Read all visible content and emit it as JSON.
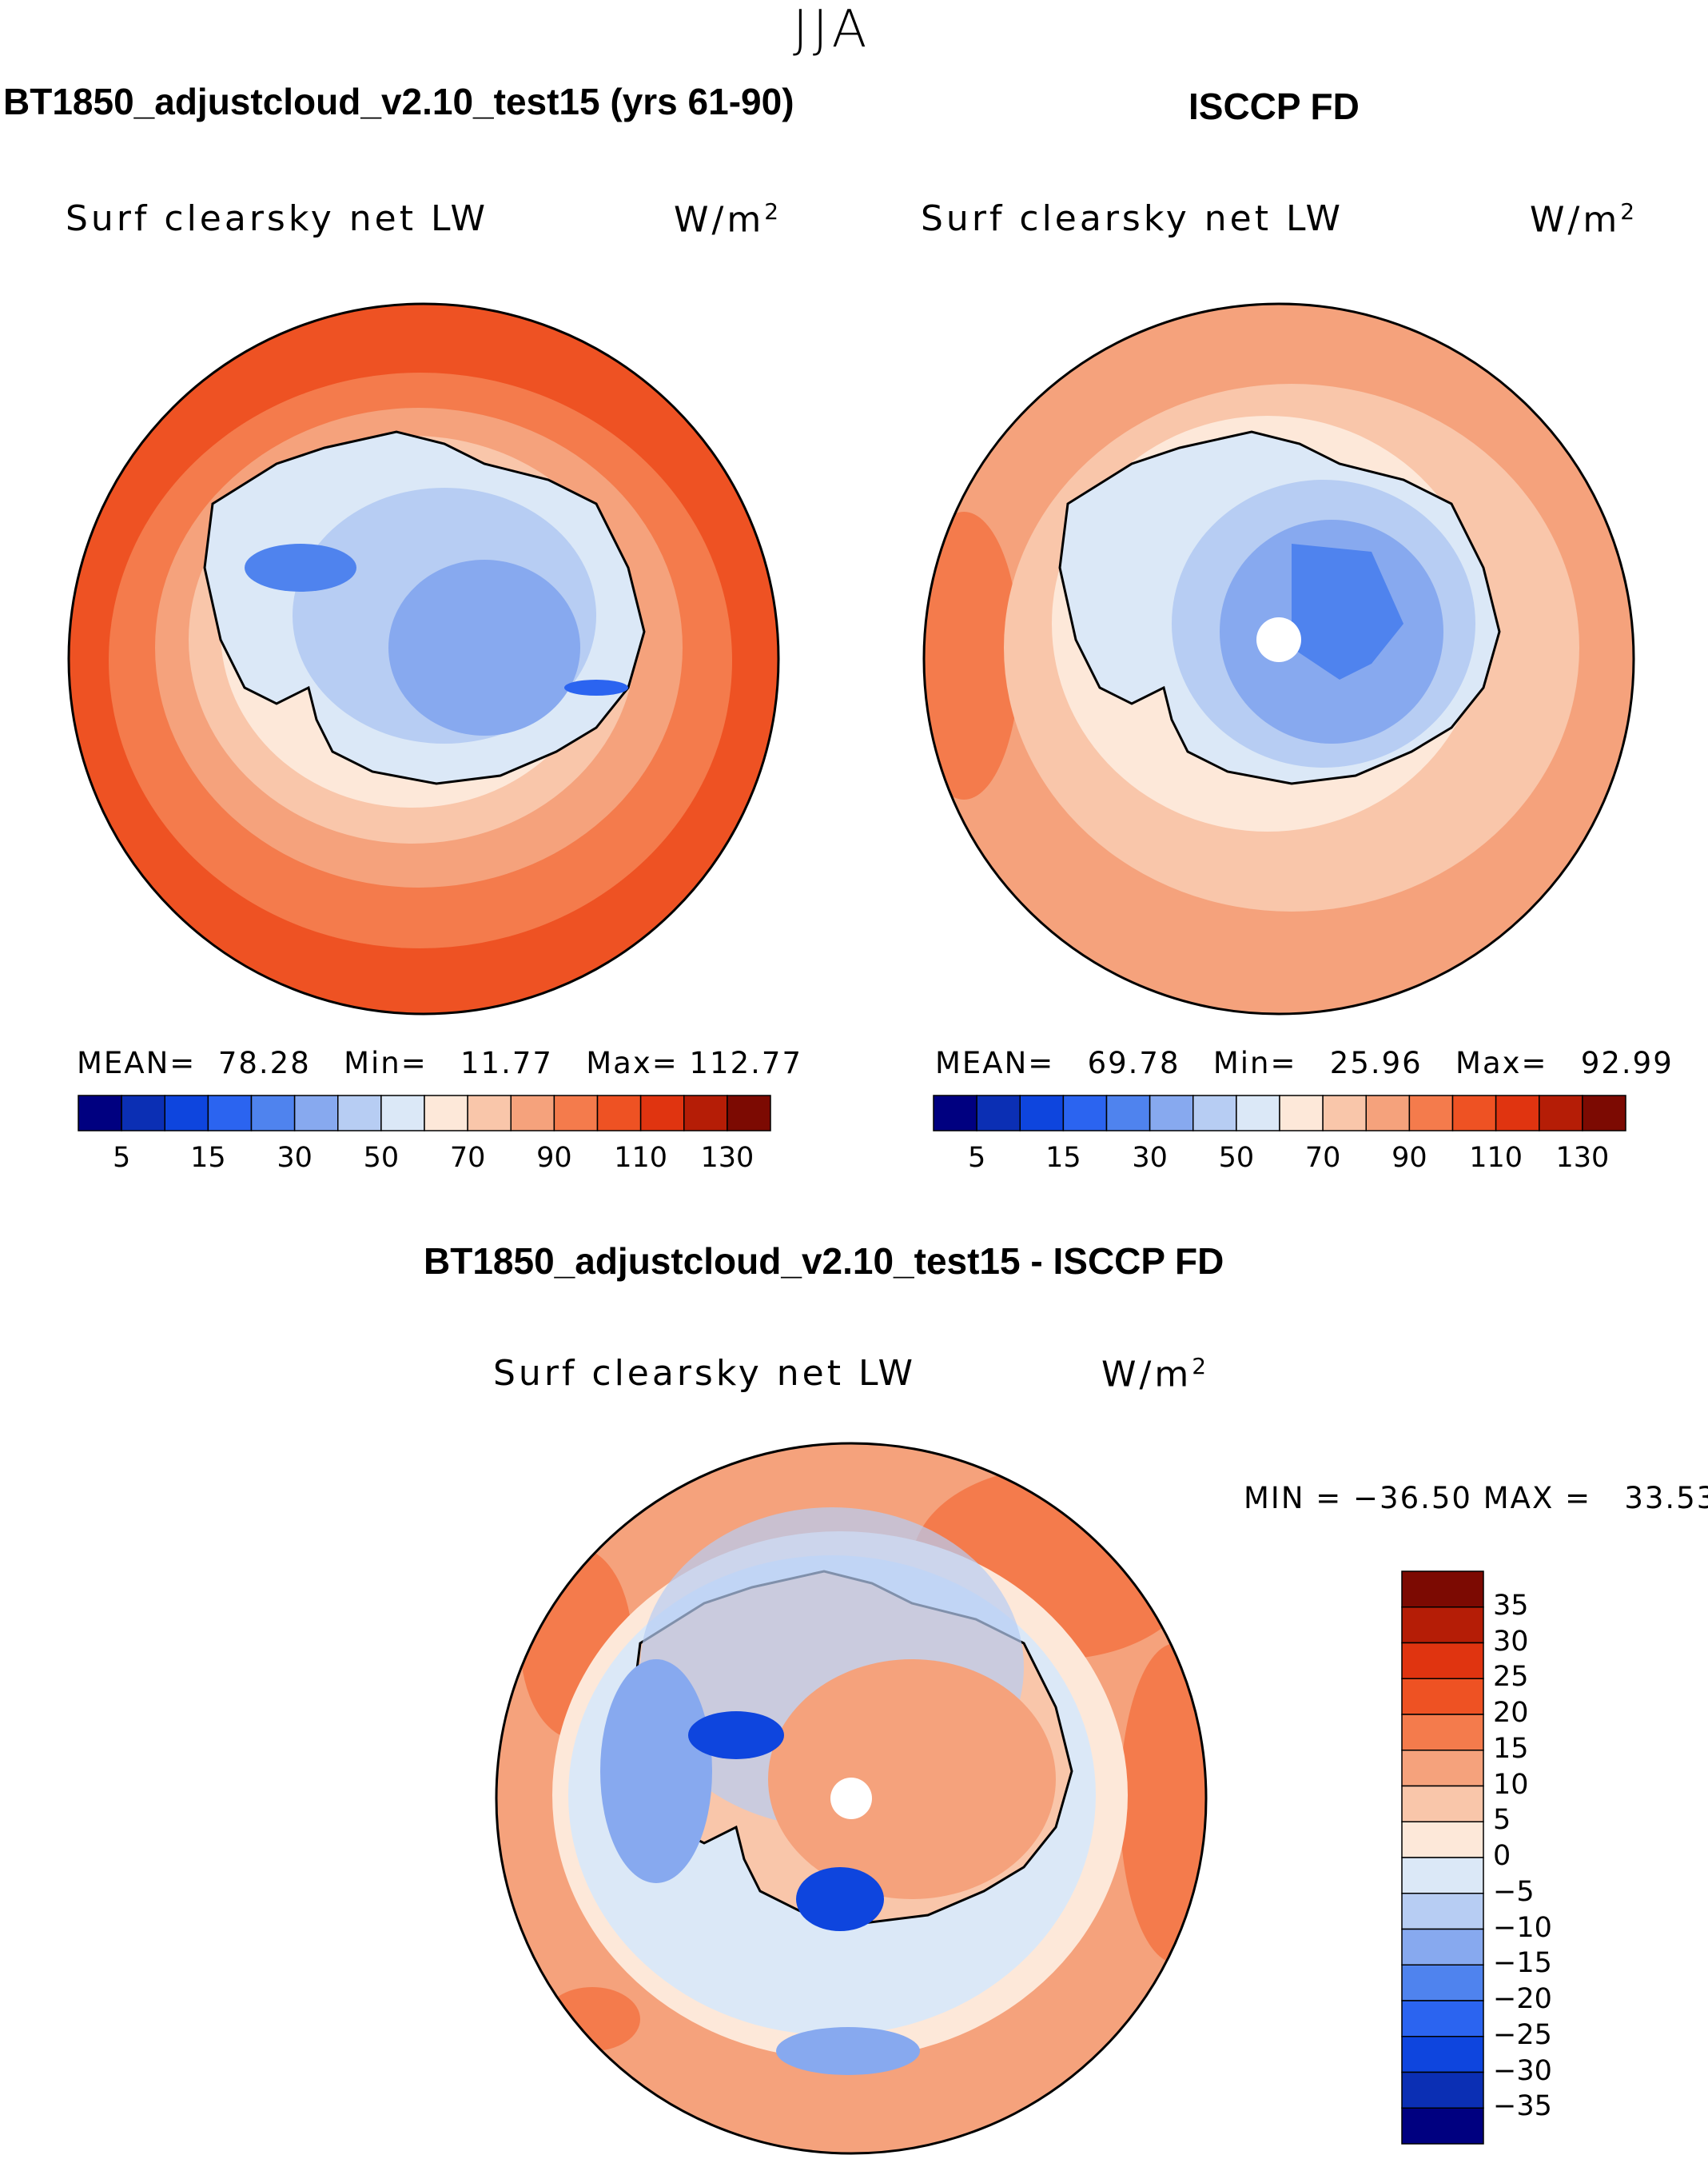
{
  "season": "JJA",
  "panels": [
    {
      "title": "BT1850_adjustcloud_v2.10_test15 (yrs 61-90)",
      "variable": "Surf clearsky net LW",
      "units": "W/m",
      "units_exp": "2",
      "mean_label": "MEAN=",
      "mean": "78.28",
      "min_label": "Min=",
      "min": "11.77",
      "max_label": "Max=",
      "max": "112.77"
    },
    {
      "title": "ISCCP FD",
      "variable": "Surf clearsky net LW",
      "units": "W/m",
      "units_exp": "2",
      "mean_label": "MEAN=",
      "mean": "69.78",
      "min_label": "Min=",
      "min": "25.96",
      "max_label": "Max=",
      "max": "92.99"
    }
  ],
  "diff_panel": {
    "title": "BT1850_adjustcloud_v2.10_test15 - ISCCP FD",
    "variable": "Surf clearsky net LW",
    "units": "W/m",
    "units_exp": "2",
    "minmax_text": "MIN = −36.50 MAX =   33.53"
  },
  "chart_data": [
    {
      "type": "heatmap",
      "projection": "south polar stereographic",
      "title": "BT1850_adjustcloud_v2.10_test15 (yrs 61-90)",
      "variable": "Surf clearsky net LW (W/m2)",
      "stats": {
        "mean": 78.28,
        "min": 11.77,
        "max": 112.77
      },
      "levels": [
        5,
        10,
        15,
        20,
        30,
        40,
        50,
        60,
        70,
        80,
        90,
        100,
        110,
        120,
        130
      ],
      "colorbar_ticks": [
        "5",
        "15",
        "30",
        "50",
        "70",
        "90",
        "110",
        "130"
      ],
      "colors": [
        "#000080",
        "#0b2fb4",
        "#0e45de",
        "#2b64f0",
        "#4f83ee",
        "#87a9ef",
        "#b7cdf3",
        "#dbe8f7",
        "#fde8d9",
        "#f9c6aa",
        "#f5a27c",
        "#f47b4c",
        "#ee5223",
        "#e03410",
        "#b51d06",
        "#7c0a02"
      ]
    },
    {
      "type": "heatmap",
      "projection": "south polar stereographic",
      "title": "ISCCP FD",
      "variable": "Surf clearsky net LW (W/m2)",
      "stats": {
        "mean": 69.78,
        "min": 25.96,
        "max": 92.99
      },
      "levels": [
        5,
        10,
        15,
        20,
        30,
        40,
        50,
        60,
        70,
        80,
        90,
        100,
        110,
        120,
        130
      ],
      "colorbar_ticks": [
        "5",
        "15",
        "30",
        "50",
        "70",
        "90",
        "110",
        "130"
      ],
      "colors": [
        "#000080",
        "#0b2fb4",
        "#0e45de",
        "#2b64f0",
        "#4f83ee",
        "#87a9ef",
        "#b7cdf3",
        "#dbe8f7",
        "#fde8d9",
        "#f9c6aa",
        "#f5a27c",
        "#f47b4c",
        "#ee5223",
        "#e03410",
        "#b51d06",
        "#7c0a02"
      ]
    },
    {
      "type": "heatmap",
      "projection": "south polar stereographic",
      "title": "BT1850_adjustcloud_v2.10_test15 - ISCCP FD",
      "variable": "Surf clearsky net LW (W/m2)",
      "stats": {
        "min": -36.5,
        "max": 33.53
      },
      "levels": [
        -35,
        -30,
        -25,
        -20,
        -15,
        -10,
        -5,
        0,
        5,
        10,
        15,
        20,
        25,
        30,
        35
      ],
      "colorbar_ticks": [
        "35",
        "30",
        "25",
        "20",
        "15",
        "10",
        "5",
        "0",
        "−5",
        "−10",
        "−15",
        "−20",
        "−25",
        "−30",
        "−35"
      ],
      "colors": [
        "#7c0a02",
        "#b51d06",
        "#e03410",
        "#ee5223",
        "#f47b4c",
        "#f5a27c",
        "#f9c6aa",
        "#fde8d9",
        "#dbe8f7",
        "#b7cdf3",
        "#87a9ef",
        "#4f83ee",
        "#2b64f0",
        "#0e45de",
        "#0b2fb4",
        "#000080"
      ]
    }
  ]
}
